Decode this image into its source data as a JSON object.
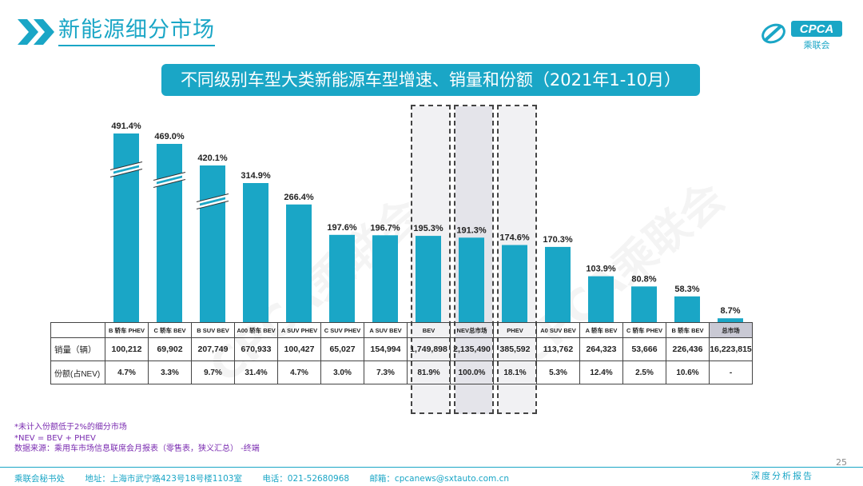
{
  "header": {
    "title": "新能源细分市场"
  },
  "logo": {
    "brand": "CPCA",
    "sub": "乘联会"
  },
  "subtitle": "不同级别车型大类新能源车型增速、销量和份额（2021年1-10月）",
  "watermark": "CPCA乘联会",
  "chart_data": {
    "type": "bar",
    "categories": [
      "B 轿车 PHEV",
      "C 轿车 BEV",
      "B SUV BEV",
      "A00 轿车 BEV",
      "A SUV PHEV",
      "C SUV PHEV",
      "A SUV BEV",
      "BEV",
      "NEV总市场",
      "PHEV",
      "A0 SUV BEV",
      "A 轿车 BEV",
      "C 轿车 PHEV",
      "B 轿车 BEV",
      "总市场"
    ],
    "values": [
      491.4,
      469.0,
      420.1,
      314.9,
      266.4,
      197.6,
      196.7,
      195.3,
      191.3,
      174.6,
      170.3,
      103.9,
      80.8,
      58.3,
      8.7
    ],
    "value_labels": [
      "491.4%",
      "469.0%",
      "420.1%",
      "314.9%",
      "266.4%",
      "197.6%",
      "196.7%",
      "195.3%",
      "191.3%",
      "174.6%",
      "170.3%",
      "103.9%",
      "80.8%",
      "58.3%",
      "8.7%"
    ],
    "broken_axis_bars": [
      0,
      1,
      2
    ],
    "unit": "%",
    "bar_color": "#1aa6c6",
    "highlight_color": "#c9c9d4",
    "highlighted": [
      "BEV",
      "NEV总市场",
      "PHEV"
    ]
  },
  "table": {
    "row_labels": [
      "销量（辆）",
      "份额(占NEV)"
    ],
    "sales": [
      "100,212",
      "69,902",
      "207,749",
      "670,933",
      "100,427",
      "65,027",
      "154,994",
      "1,749,898",
      "2,135,490",
      "385,592",
      "113,762",
      "264,323",
      "53,666",
      "226,436",
      "16,223,815"
    ],
    "share": [
      "4.7%",
      "3.3%",
      "9.7%",
      "31.4%",
      "4.7%",
      "3.0%",
      "7.3%",
      "81.9%",
      "100.0%",
      "18.1%",
      "5.3%",
      "12.4%",
      "2.5%",
      "10.6%",
      "-"
    ]
  },
  "notes": [
    "*未计入份额低于2%的细分市场",
    "*NEV = BEV + PHEV",
    "数据来源：乘用车市场信息联席会月报表（零售表，狭义汇总）   -终端"
  ],
  "footer": {
    "org": "乘联会秘书处",
    "address": "地址：上海市武宁路423号18号楼1103室",
    "phone": "电话：021-52680968",
    "email": "邮箱：cpcanews@sxtauto.com.cn",
    "tag": "深度分析报告"
  },
  "page_number": "25"
}
